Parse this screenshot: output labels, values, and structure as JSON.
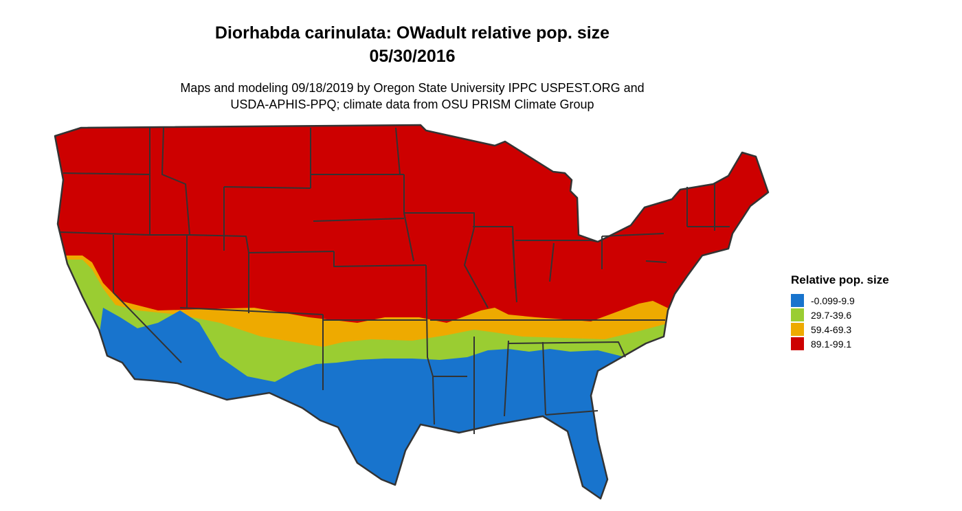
{
  "title": {
    "line1": "Diorhabda carinulata: OWadult relative pop. size",
    "line2": "05/30/2016"
  },
  "subtitle": {
    "line1": "Maps and modeling 09/18/2019 by Oregon State University IPPC USPEST.ORG and",
    "line2": "USDA-APHIS-PPQ; climate data from OSU PRISM Climate Group"
  },
  "legend": {
    "title": "Relative pop. size",
    "items": [
      {
        "label": "-0.099-9.9",
        "color": "#1874cd"
      },
      {
        "label": "29.7-39.6",
        "color": "#9acd32"
      },
      {
        "label": "59.4-69.3",
        "color": "#eeaa00"
      },
      {
        "label": "89.1-99.1",
        "color": "#cd0000"
      }
    ]
  },
  "map": {
    "region": "contiguous United States",
    "border_color": "#333333",
    "colors": {
      "high": "#cd0000",
      "mid_high": "#eeaa00",
      "mid_low": "#9acd32",
      "low": "#1874cd"
    }
  }
}
